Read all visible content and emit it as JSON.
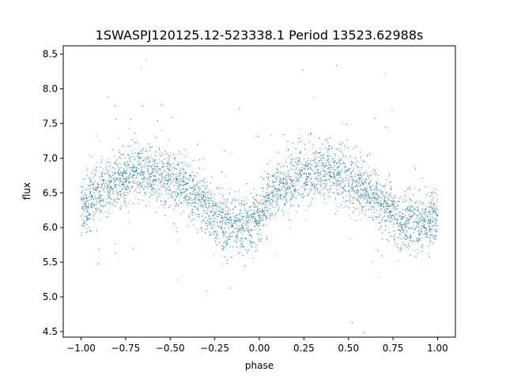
{
  "chart_data": {
    "type": "scatter",
    "title": "1SWASPJ120125.12-523338.1 Period 13523.62988s",
    "xlabel": "phase",
    "ylabel": "flux",
    "xlim": [
      -1.1,
      1.1
    ],
    "ylim": [
      4.42,
      8.62
    ],
    "x_ticks": [
      -1.0,
      -0.75,
      -0.5,
      -0.25,
      0.0,
      0.25,
      0.5,
      0.75,
      1.0
    ],
    "x_tick_labels": [
      "−1.00",
      "−0.75",
      "−0.50",
      "−0.25",
      "0.00",
      "0.25",
      "0.50",
      "0.75",
      "1.00"
    ],
    "y_ticks": [
      4.5,
      5.0,
      5.5,
      6.0,
      6.5,
      7.0,
      7.5,
      8.0,
      8.5
    ],
    "y_tick_labels": [
      "4.5",
      "5.0",
      "5.5",
      "6.0",
      "6.5",
      "7.0",
      "7.5",
      "8.0",
      "8.5"
    ],
    "grid": false,
    "series_color": "#1f77b4",
    "series": [
      {
        "x": [
          -1.0,
          -0.95,
          -0.9,
          -0.85,
          -0.8,
          -0.75,
          -0.7,
          -0.65,
          -0.6,
          -0.55,
          -0.5,
          -0.45,
          -0.4,
          -0.35,
          -0.3,
          -0.25,
          -0.2,
          -0.15,
          -0.1,
          -0.05,
          0.0,
          0.05,
          0.1,
          0.15,
          0.2,
          0.25,
          0.3,
          0.35,
          0.4,
          0.45,
          0.5,
          0.55,
          0.6,
          0.65,
          0.7,
          0.75,
          0.8,
          0.85,
          0.9,
          0.95,
          1.0
        ],
        "y": [
          6.28,
          6.4,
          6.5,
          6.58,
          6.66,
          6.74,
          6.8,
          6.82,
          6.8,
          6.76,
          6.7,
          6.62,
          6.55,
          6.45,
          6.32,
          6.18,
          6.08,
          6.03,
          6.02,
          6.07,
          6.2,
          6.38,
          6.52,
          6.62,
          6.7,
          6.76,
          6.8,
          6.82,
          6.8,
          6.76,
          6.7,
          6.62,
          6.55,
          6.45,
          6.32,
          6.2,
          6.1,
          6.05,
          6.04,
          6.08,
          6.15
        ]
      }
    ]
  }
}
